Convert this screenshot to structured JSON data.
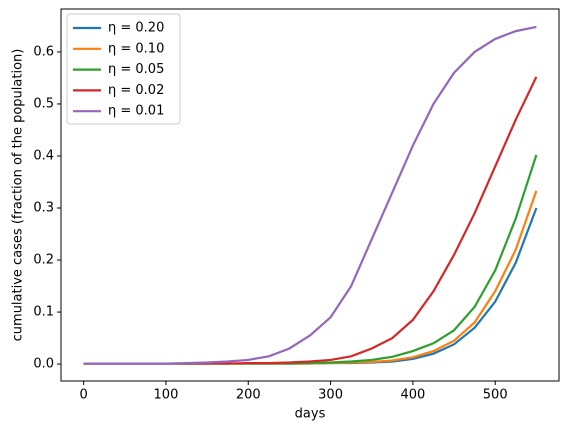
{
  "chart_data": {
    "type": "line",
    "x": [
      0,
      25,
      50,
      75,
      100,
      125,
      150,
      175,
      200,
      225,
      250,
      275,
      300,
      325,
      350,
      375,
      400,
      425,
      450,
      475,
      500,
      525,
      550
    ],
    "series": [
      {
        "name": "η = 0.20",
        "color": "#1f77b4",
        "values": [
          0.001,
          0.001,
          0.001,
          0.001,
          0.001,
          0.001,
          0.001,
          0.001,
          0.001,
          0.001,
          0.001,
          0.001,
          0.002,
          0.002,
          0.003,
          0.005,
          0.01,
          0.02,
          0.038,
          0.07,
          0.12,
          0.195,
          0.3
        ]
      },
      {
        "name": "η = 0.10",
        "color": "#ff7f0e",
        "values": [
          0.001,
          0.001,
          0.001,
          0.001,
          0.001,
          0.001,
          0.001,
          0.001,
          0.001,
          0.001,
          0.001,
          0.001,
          0.002,
          0.003,
          0.004,
          0.007,
          0.013,
          0.025,
          0.045,
          0.08,
          0.14,
          0.22,
          0.333
        ]
      },
      {
        "name": "η = 0.05",
        "color": "#2ca02c",
        "values": [
          0.001,
          0.001,
          0.001,
          0.001,
          0.001,
          0.001,
          0.001,
          0.001,
          0.001,
          0.001,
          0.001,
          0.002,
          0.003,
          0.005,
          0.008,
          0.014,
          0.025,
          0.04,
          0.065,
          0.11,
          0.18,
          0.28,
          0.402
        ]
      },
      {
        "name": "η = 0.02",
        "color": "#d62728",
        "values": [
          0.001,
          0.001,
          0.001,
          0.001,
          0.001,
          0.001,
          0.001,
          0.001,
          0.002,
          0.002,
          0.003,
          0.005,
          0.008,
          0.015,
          0.03,
          0.05,
          0.085,
          0.14,
          0.21,
          0.29,
          0.38,
          0.47,
          0.552
        ]
      },
      {
        "name": "η = 0.01",
        "color": "#9467bd",
        "values": [
          0.001,
          0.001,
          0.001,
          0.001,
          0.001,
          0.002,
          0.003,
          0.005,
          0.008,
          0.015,
          0.03,
          0.055,
          0.09,
          0.15,
          0.24,
          0.33,
          0.42,
          0.5,
          0.56,
          0.6,
          0.625,
          0.64,
          0.648
        ]
      }
    ],
    "xlabel": "days",
    "ylabel": "cumulative cases (fraction of the population)",
    "xlim": [
      -27.5,
      577.5
    ],
    "xticks": [
      0,
      100,
      200,
      300,
      400,
      500
    ],
    "ylim": [
      -0.0325,
      0.6825
    ],
    "yticks": [
      {
        "value": 0,
        "label": "0.0"
      },
      0.1,
      0.2,
      0.3,
      0.4,
      0.5,
      0.6
    ],
    "legend": "upper left",
    "grid": false
  }
}
